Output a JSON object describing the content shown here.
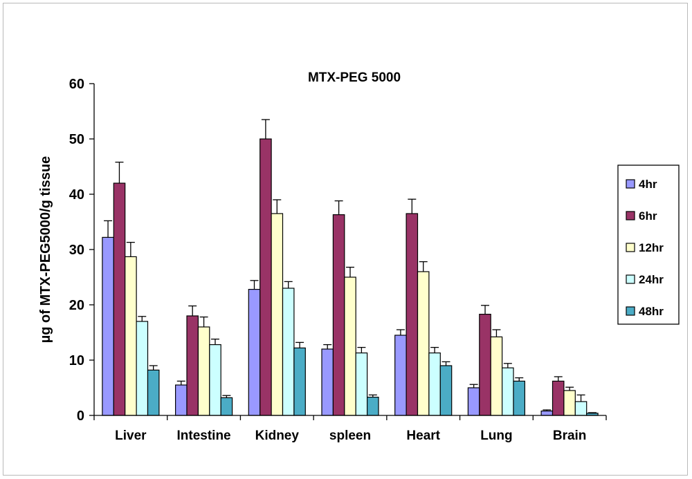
{
  "chart_data": {
    "type": "bar",
    "title": "MTX-PEG 5000",
    "xlabel": "",
    "ylabel": "µg of MTX-PEG5000/g tissue",
    "ylim": [
      0,
      60
    ],
    "yticks": [
      "0",
      "10",
      "20",
      "30",
      "40",
      "50",
      "60"
    ],
    "grid": false,
    "legend_position": "right",
    "categories": [
      "Liver",
      "Intestine",
      "Kidney",
      "spleen",
      "Heart",
      "Lung",
      "Brain"
    ],
    "series": [
      {
        "name": "4hr",
        "color": "#9999ff",
        "values": [
          32.2,
          5.5,
          22.8,
          12.0,
          14.5,
          5.0,
          0.8
        ],
        "errors": [
          3.0,
          0.7,
          1.6,
          0.8,
          1.0,
          0.6,
          0.2
        ]
      },
      {
        "name": "6hr",
        "color": "#993366",
        "values": [
          42.0,
          18.0,
          50.0,
          36.3,
          36.5,
          18.3,
          6.2
        ],
        "errors": [
          3.8,
          1.8,
          3.5,
          2.5,
          2.6,
          1.6,
          0.8
        ]
      },
      {
        "name": "12hr",
        "color": "#ffffcc",
        "values": [
          28.7,
          16.0,
          36.5,
          25.0,
          26.0,
          14.2,
          4.5
        ],
        "errors": [
          2.6,
          1.8,
          2.5,
          1.8,
          1.8,
          1.3,
          0.6
        ]
      },
      {
        "name": "24hr",
        "color": "#ccffff",
        "values": [
          17.0,
          12.8,
          23.0,
          11.3,
          11.3,
          8.6,
          2.5
        ],
        "errors": [
          0.9,
          1.0,
          1.2,
          1.0,
          1.0,
          0.8,
          1.2
        ]
      },
      {
        "name": "48hr",
        "color": "#4bacc6",
        "values": [
          8.2,
          3.2,
          12.2,
          3.3,
          9.0,
          6.2,
          0.4
        ],
        "errors": [
          0.8,
          0.4,
          1.0,
          0.4,
          0.7,
          0.6,
          0.1
        ]
      }
    ]
  }
}
